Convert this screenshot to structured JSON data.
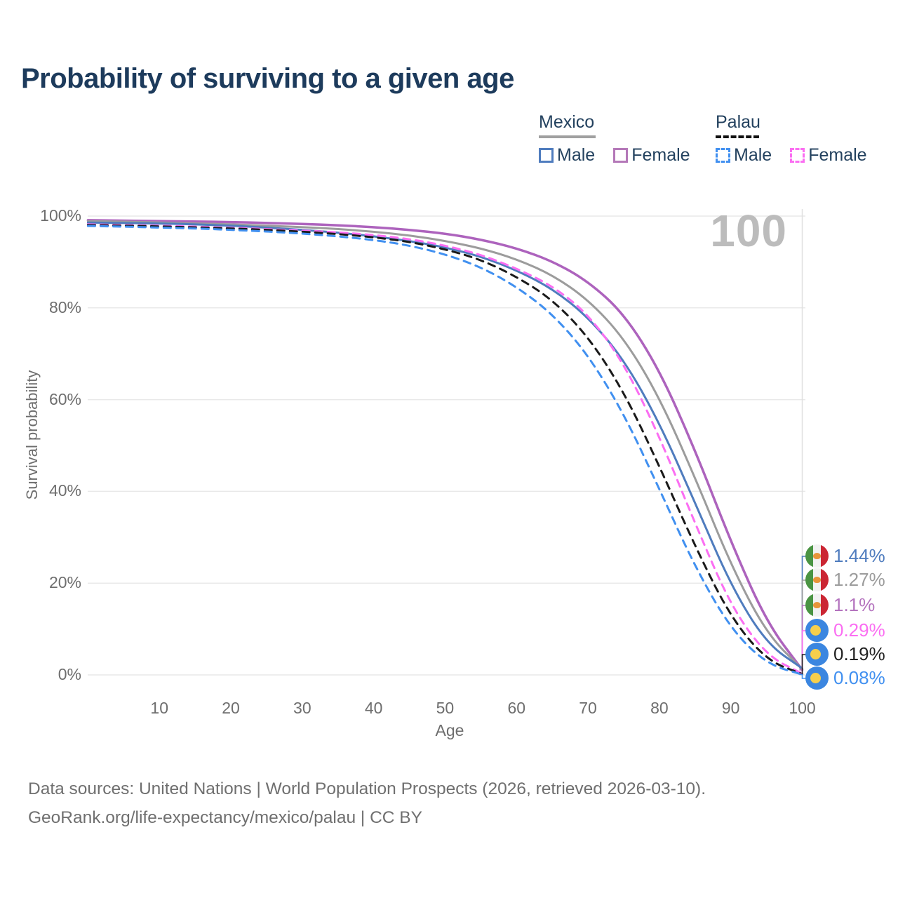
{
  "title": "Probability of surviving to a given age",
  "watermark_age": "100",
  "legend": {
    "groups": [
      {
        "label": "Mexico",
        "underline_style": "solid",
        "underline_color": "#a0a0a0",
        "items": [
          {
            "label": "Male",
            "color": "#4f7cbe",
            "dashed": false
          },
          {
            "label": "Female",
            "color": "#b478b8",
            "dashed": false
          }
        ]
      },
      {
        "label": "Palau",
        "underline_style": "dashed",
        "underline_color": "#111111",
        "items": [
          {
            "label": "Male",
            "color": "#4190f0",
            "dashed": true
          },
          {
            "label": "Female",
            "color": "#fb6ef2",
            "dashed": true
          }
        ]
      }
    ]
  },
  "axes": {
    "y_label": "Survival probability",
    "x_label": "Age",
    "y_ticks": [
      {
        "value": 0,
        "label": "0%"
      },
      {
        "value": 20,
        "label": "20%"
      },
      {
        "value": 40,
        "label": "40%"
      },
      {
        "value": 60,
        "label": "60%"
      },
      {
        "value": 80,
        "label": "80%"
      },
      {
        "value": 100,
        "label": "100%"
      }
    ],
    "x_ticks": [
      10,
      20,
      30,
      40,
      50,
      60,
      70,
      80,
      90,
      100
    ]
  },
  "chart_data": {
    "type": "line",
    "title": "Probability of surviving to a given age",
    "xlabel": "Age",
    "ylabel": "Survival probability",
    "xlim": [
      0,
      100
    ],
    "ylim": [
      0,
      100
    ],
    "grid": "horizontal",
    "ages": [
      0,
      5,
      10,
      15,
      20,
      25,
      30,
      35,
      40,
      45,
      50,
      55,
      60,
      65,
      70,
      75,
      80,
      85,
      90,
      95,
      100
    ],
    "series": [
      {
        "name": "Mexico Female",
        "country": "Mexico",
        "sex": "Female",
        "color": "#ad63bd",
        "dashed": false,
        "values": [
          99.1,
          99.0,
          98.9,
          98.8,
          98.7,
          98.5,
          98.3,
          98.0,
          97.6,
          97.0,
          96.2,
          94.9,
          93.0,
          90.2,
          85.8,
          78.8,
          66.5,
          49.0,
          29.0,
          11.5,
          1.1
        ]
      },
      {
        "name": "Mexico Both sexes",
        "country": "Mexico",
        "sex": "Both",
        "color": "#9c9c9c",
        "dashed": false,
        "values": [
          98.9,
          98.8,
          98.6,
          98.4,
          98.2,
          97.9,
          97.6,
          97.2,
          96.6,
          95.8,
          94.6,
          93.0,
          90.6,
          87.2,
          81.8,
          73.5,
          60.5,
          43.0,
          24.0,
          9.0,
          1.27
        ]
      },
      {
        "name": "Mexico Male",
        "country": "Mexico",
        "sex": "Male",
        "color": "#4f7cbe",
        "dashed": false,
        "values": [
          98.6,
          98.5,
          98.4,
          98.2,
          97.9,
          97.5,
          97.0,
          96.4,
          95.6,
          94.6,
          93.2,
          91.2,
          88.2,
          84.2,
          78.0,
          68.8,
          55.0,
          37.5,
          19.5,
          6.8,
          1.44
        ]
      },
      {
        "name": "Palau Female",
        "country": "Palau",
        "sex": "Female",
        "color": "#fb6ef2",
        "dashed": true,
        "values": [
          98.2,
          98.05,
          97.9,
          97.7,
          97.45,
          97.15,
          96.85,
          96.45,
          95.9,
          95.0,
          93.6,
          91.6,
          88.6,
          84.8,
          78.7,
          68.0,
          52.0,
          33.0,
          15.0,
          4.2,
          0.29
        ]
      },
      {
        "name": "Palau Both sexes",
        "country": "Palau",
        "sex": "Both",
        "color": "#1a1a1a",
        "dashed": true,
        "values": [
          98.05,
          97.9,
          97.75,
          97.55,
          97.3,
          97.0,
          96.6,
          96.1,
          95.4,
          94.4,
          92.8,
          90.5,
          86.8,
          81.8,
          73.8,
          61.8,
          45.5,
          28.0,
          12.5,
          3.2,
          0.19
        ]
      },
      {
        "name": "Palau Male",
        "country": "Palau",
        "sex": "Male",
        "color": "#4190f0",
        "dashed": true,
        "values": [
          97.85,
          97.7,
          97.5,
          97.3,
          97.0,
          96.65,
          96.2,
          95.6,
          94.8,
          93.6,
          91.7,
          88.9,
          84.6,
          78.7,
          69.8,
          57.0,
          40.5,
          23.5,
          10.0,
          2.4,
          0.08
        ]
      }
    ],
    "end_labels": [
      {
        "label": "1.44%",
        "value": 1.44,
        "color": "#4f7cbe",
        "flag": "mexico-flag-icon",
        "series": "Mexico Male"
      },
      {
        "label": "1.27%",
        "value": 1.27,
        "color": "#9c9c9c",
        "flag": "mexico-flag-icon",
        "series": "Mexico Both sexes"
      },
      {
        "label": "1.1%",
        "value": 1.1,
        "color": "#b473be",
        "flag": "mexico-flag-icon",
        "series": "Mexico Female"
      },
      {
        "label": "0.29%",
        "value": 0.29,
        "color": "#fb6ef2",
        "flag": "palau-flag-icon",
        "series": "Palau Female"
      },
      {
        "label": "0.19%",
        "value": 0.19,
        "color": "#222222",
        "flag": "palau-flag-icon",
        "series": "Palau Both sexes"
      },
      {
        "label": "0.08%",
        "value": 0.08,
        "color": "#4190f0",
        "flag": "palau-flag-icon",
        "series": "Palau Male"
      }
    ]
  },
  "footer": {
    "line1": "Data sources: United Nations | World Population Prospects (2026, retrieved 2026-03-10).",
    "line2": "GeoRank.org/life-expectancy/mexico/palau | CC BY"
  }
}
